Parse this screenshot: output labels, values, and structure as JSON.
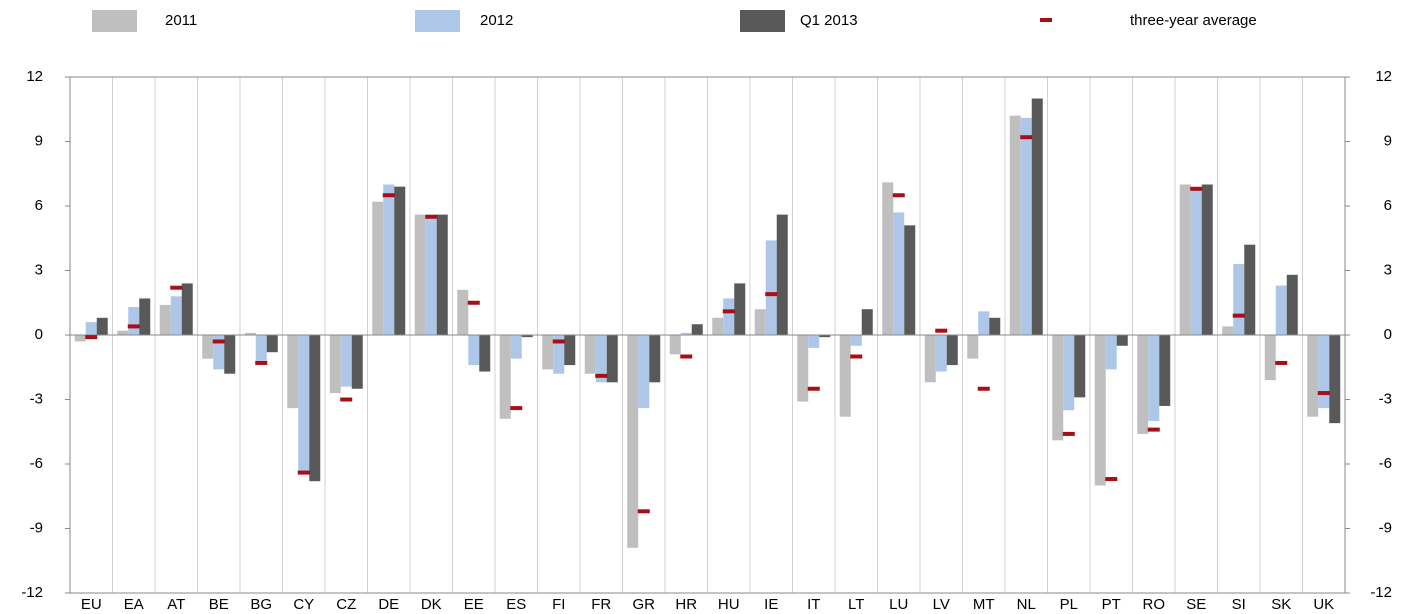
{
  "chart_data": {
    "type": "bar",
    "categories": [
      "EU",
      "EA",
      "AT",
      "BE",
      "BG",
      "CY",
      "CZ",
      "DE",
      "DK",
      "EE",
      "ES",
      "FI",
      "FR",
      "GR",
      "HR",
      "HU",
      "IE",
      "IT",
      "LT",
      "LU",
      "LV",
      "MT",
      "NL",
      "PL",
      "PT",
      "RO",
      "SE",
      "SI",
      "SK",
      "UK"
    ],
    "series": [
      {
        "name": "2011",
        "color": "#bfbfbf",
        "type": "bar",
        "values": [
          -0.3,
          0.2,
          1.4,
          -1.1,
          0.1,
          -3.4,
          -2.7,
          6.2,
          5.6,
          2.1,
          -3.9,
          -1.6,
          -1.8,
          -9.9,
          -0.9,
          0.8,
          1.2,
          -3.1,
          -3.8,
          7.1,
          -2.2,
          -1.1,
          10.2,
          -4.9,
          -7.0,
          -4.6,
          7.0,
          0.4,
          -2.1,
          -3.8
        ]
      },
      {
        "name": "2012",
        "color": "#aec7e8",
        "type": "bar",
        "values": [
          0.6,
          1.3,
          1.8,
          -1.6,
          -1.2,
          -6.4,
          -2.4,
          7.0,
          5.6,
          -1.4,
          -1.1,
          -1.8,
          -2.2,
          -3.4,
          0.1,
          1.7,
          4.4,
          -0.6,
          -0.5,
          5.7,
          -1.7,
          1.1,
          10.1,
          -3.5,
          -1.6,
          -4.0,
          6.8,
          3.3,
          2.3,
          -3.4
        ]
      },
      {
        "name": "Q1 2013",
        "color": "#595959",
        "type": "bar",
        "values": [
          0.8,
          1.7,
          2.4,
          -1.8,
          -0.8,
          -6.8,
          -2.5,
          6.9,
          5.6,
          -1.7,
          -0.1,
          -1.4,
          -2.2,
          -2.2,
          0.5,
          2.4,
          5.6,
          -0.1,
          1.2,
          5.1,
          -1.4,
          0.8,
          11.0,
          -2.9,
          -0.5,
          -3.3,
          7.0,
          4.2,
          2.8,
          -4.1
        ]
      },
      {
        "name": "three-year average",
        "color": "#a50f15",
        "type": "marker",
        "values": [
          -0.1,
          0.4,
          2.2,
          -0.3,
          -1.3,
          -6.4,
          -3.0,
          6.5,
          5.5,
          1.5,
          -3.4,
          -0.3,
          -1.9,
          -8.2,
          -1.0,
          1.1,
          1.9,
          -2.5,
          -1.0,
          6.5,
          0.2,
          -2.5,
          9.2,
          -4.6,
          -6.7,
          -4.4,
          6.8,
          0.9,
          -1.3,
          -2.7
        ]
      }
    ],
    "ylim": [
      -12,
      12
    ],
    "yticks": [
      -12,
      -9,
      -6,
      -3,
      0,
      3,
      6,
      9,
      12
    ],
    "y2lim": [
      -12,
      12
    ],
    "y2ticks": [
      -12,
      -9,
      -6,
      -3,
      0,
      3,
      6,
      9,
      12
    ],
    "grid": true
  }
}
